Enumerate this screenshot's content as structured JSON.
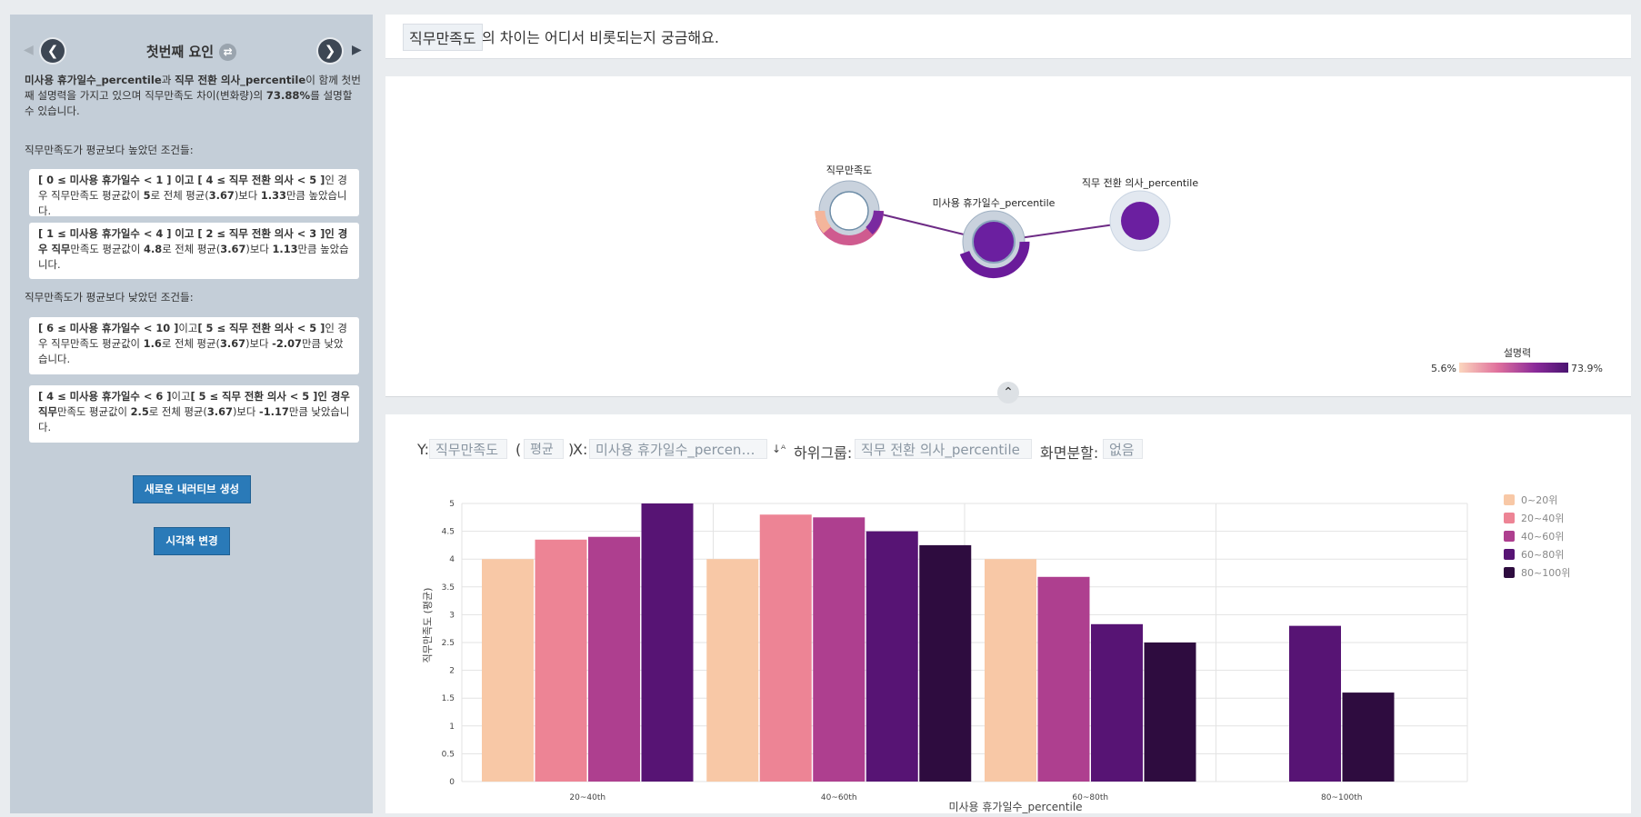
{
  "factor_nav": {
    "title": "첫번째 요인",
    "prev_icon": "chevron-left-icon",
    "next_icon": "chevron-right-icon",
    "swap_icon": "swap-icon"
  },
  "summary": {
    "var1": "미사용 휴가일수_percentile",
    "t1": "과 ",
    "var2": "직무 전환 의사_percentile",
    "t2": "이 함께 첫번째 설명력을 가지고 있으며 직무만족도 차이(변화량)의 ",
    "pct": "73.88%",
    "t3": "를 설명할 수 있습니다."
  },
  "higher_label": "직무만족도가 평균보다 높았던 조건들:",
  "lower_label": "직무만족도가 평균보다 낮았던 조건들:",
  "conditions_high": [
    {
      "cond": "[ 0 ≤ 미사용 휴가일수 < 1 ] 이고 [ 4 ≤ 직무 전환 의사 < 5 ]",
      "rest1": "인 경우 직무만족도 평균값이 ",
      "val": "5",
      "rest2": "로 전체 평균(",
      "avg": "3.67",
      "rest3": ")보다 ",
      "diff": "1.33",
      "rest4": "만큼 높았습니다."
    },
    {
      "cond": "[ 1 ≤ 미사용 휴가일수 < 4 ] 이고 [ 2 ≤ 직무 전환 의사 < 3 ]인 경우 직무",
      "rest1": "만족도 평균값이 ",
      "val": "4.8",
      "rest2": "로 전체 평균(",
      "avg": "3.67",
      "rest3": ")보다 ",
      "diff": "1.13",
      "rest4": "만큼 높았습니다."
    }
  ],
  "conditions_low": [
    {
      "cond": "[ 6 ≤ 미사용 휴가일수 < 10 ]",
      "mid": "이고",
      "cond2": "[ 5 ≤ 직무 전환 의사 < 5 ]",
      "rest1": "인 경우 직무만족도 평균값이 ",
      "val": "1.6",
      "rest2": "로 전체 평균(",
      "avg": "3.67",
      "rest3": ")보다 ",
      "diff": "-2.07",
      "rest4": "만큼 낮았습니다."
    },
    {
      "cond": "[ 4 ≤ 미사용 휴가일수 < 6 ]",
      "mid": "이고",
      "cond2": "[ 5 ≤ 직무 전환 의사 < 5 ]인 경우 직무",
      "rest1": "만족도 평균값이 ",
      "val": "2.5",
      "rest2": "로 전체 평균(",
      "avg": "3.67",
      "rest3": ")보다 ",
      "diff": "-1.17",
      "rest4": "만큼 낮았습니다."
    }
  ],
  "buttons": {
    "new_narrative": "새로운 내러티브 생성",
    "change_vis": "시각화 변경"
  },
  "question": {
    "chip": "직무만족도",
    "text": "의 차이는 어디서 비롯되는지 궁금해요."
  },
  "graph": {
    "nodes": [
      {
        "label": "직무만족도"
      },
      {
        "label": "미사용 휴가일수_percentile"
      },
      {
        "label": "직무 전환 의사_percentile"
      }
    ],
    "legend_title": "설명력",
    "legend_min": "5.6%",
    "legend_max": "73.9%"
  },
  "controls": {
    "y_label": "Y:",
    "y_value": "직무만족도",
    "agg_open": "(",
    "agg_value": "평균",
    "agg_close": ")",
    "x_label": "X:",
    "x_value": "미사용 휴가일수_percen…",
    "sort_icon": "sort-az-icon",
    "subgroup_label": "하위그룹:",
    "subgroup_value": "직무 전환 의사_percentile",
    "split_label": "화면분할:",
    "split_value": "없음"
  },
  "chart_data": {
    "type": "bar",
    "categories": [
      "20~40th",
      "40~60th",
      "60~80th",
      "80~100th"
    ],
    "series": [
      {
        "name": "0~20위",
        "color": "#f8c8a6",
        "values": [
          4.0,
          4.0,
          4.0,
          null
        ]
      },
      {
        "name": "20~40위",
        "color": "#ed8495",
        "values": [
          4.35,
          4.8,
          null,
          null
        ]
      },
      {
        "name": "40~60위",
        "color": "#ae3f8f",
        "values": [
          4.4,
          4.75,
          3.68,
          null
        ]
      },
      {
        "name": "60~80위",
        "color": "#571474",
        "values": [
          5.0,
          4.5,
          2.83,
          2.8
        ]
      },
      {
        "name": "80~100위",
        "color": "#2e0c3f",
        "values": [
          null,
          4.25,
          2.5,
          1.6
        ]
      }
    ],
    "xlabel": "미사용 휴가일수_percentile",
    "ylabel": "직무만족도 (평균)",
    "ylim": [
      0,
      5
    ],
    "yticks": [
      "0",
      "0.5",
      "1",
      "1.5",
      "2",
      "2.5",
      "3",
      "3.5",
      "4",
      "4.5",
      "5"
    ],
    "grid": true,
    "legend_position": "right"
  }
}
